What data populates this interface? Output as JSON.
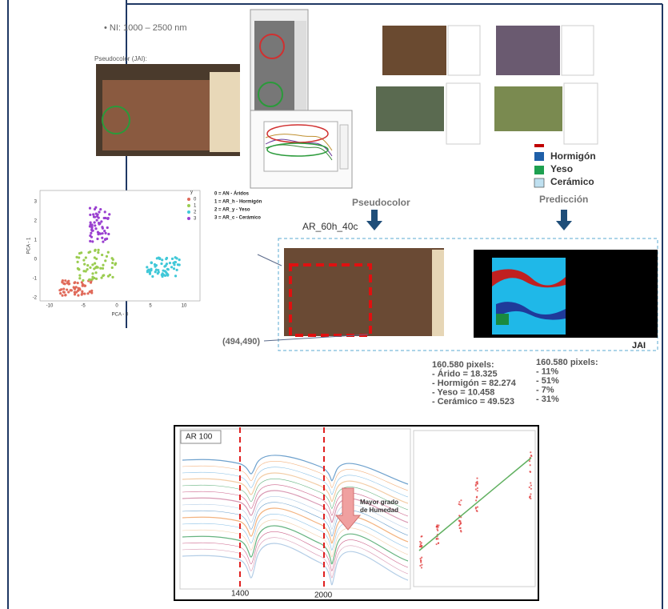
{
  "intro": {
    "bullet": "•  NI: 1000 – 2500 nm",
    "pseudocolor_jai": "Pseudocolor (JAI):"
  },
  "legend": {
    "items": [
      "Hormigón",
      "Yeso",
      "Cerámico"
    ]
  },
  "scatter": {
    "xlabel": "PCA - 0",
    "ylabel": "PCA - 1",
    "xticks": [
      -10,
      -5,
      0,
      5,
      10
    ],
    "yticks": [
      -2,
      -1,
      0,
      1,
      2,
      3
    ],
    "legend_title": "y",
    "legend_items": [
      "0",
      "1",
      "2",
      "3"
    ]
  },
  "classes": [
    "0 = AN - Áridos",
    "1 = AR_h - Hormigón",
    "2 = AR_y - Yeso",
    "3 = AR_c - Cerámico"
  ],
  "headings": {
    "pseudocolor": "Pseudocolor",
    "prediction": "Predicción"
  },
  "sample": "AR_60h_40c",
  "coords": "(494,490)",
  "camera": "JAI",
  "counts": [
    "160.580 pixels:",
    "- Árido = 18.325",
    "- Hormigón = 82.274",
    "- Yeso = 10.458",
    "- Cerámico = 49.523"
  ],
  "percentages": [
    "160.580 pixels:",
    "- 11%",
    "- 51%",
    "- 7%",
    "- 31%"
  ],
  "spectra": {
    "label": "AR 100",
    "note": [
      "Mayor grado",
      "de Humedad"
    ],
    "wavelengths": [
      "1400",
      "2000"
    ]
  }
}
